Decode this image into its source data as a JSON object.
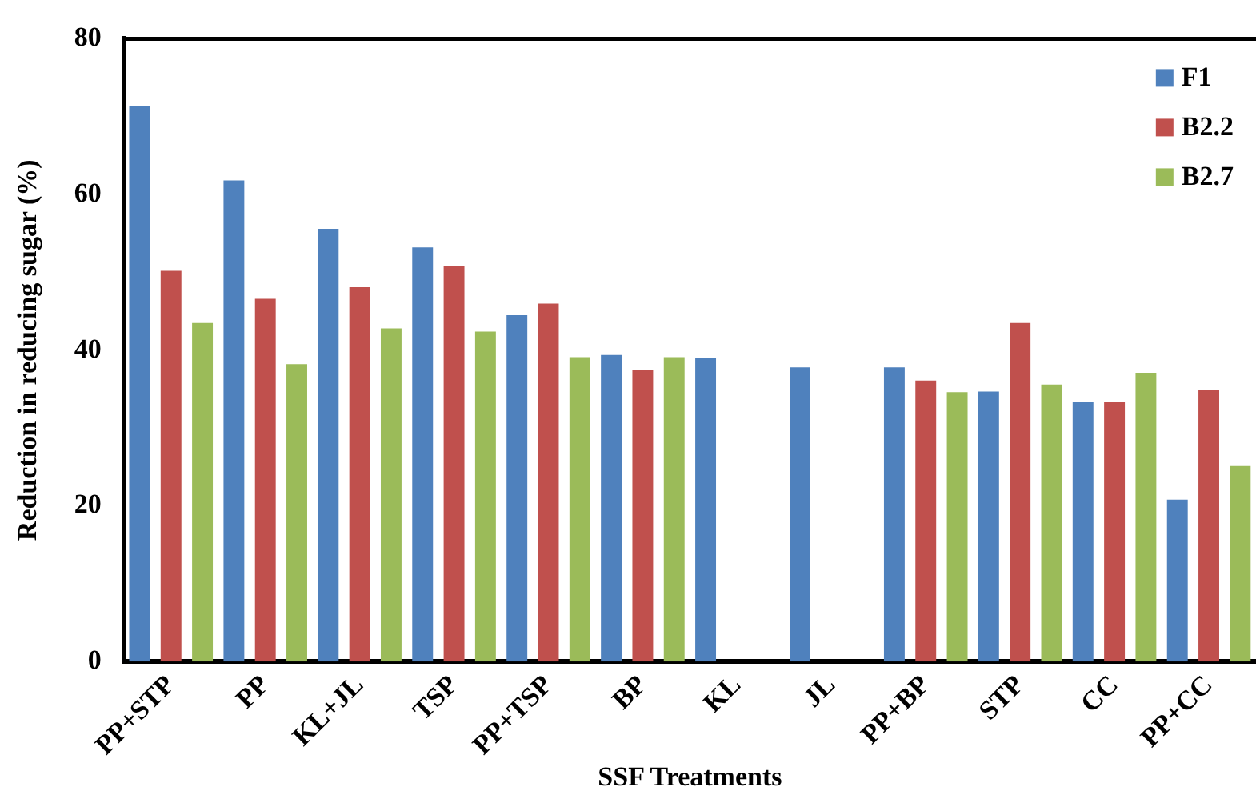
{
  "chart_data": {
    "type": "bar",
    "xlabel": "SSF Treatments",
    "ylabel": "Reduction in reducing sugar (%)",
    "categories": [
      "PP+STP",
      "PP",
      "KL+JL",
      "TSP",
      "PP+TSP",
      "BP",
      "KL",
      "JL",
      "PP+BP",
      "STP",
      "CC",
      "PP+CC"
    ],
    "series": [
      {
        "name": "F1",
        "color": "#4f81bd",
        "values": [
          71.3,
          61.8,
          55.6,
          53.2,
          44.5,
          39.4,
          39.0,
          37.8,
          37.8,
          34.7,
          33.3,
          20.8
        ]
      },
      {
        "name": "B2.2",
        "color": "#c0504d",
        "values": [
          50.2,
          46.6,
          48.1,
          50.8,
          46.0,
          37.4,
          null,
          null,
          36.1,
          43.5,
          33.3,
          34.9
        ]
      },
      {
        "name": "B2.7",
        "color": "#9bbb59",
        "values": [
          43.5,
          38.2,
          42.8,
          42.4,
          39.1,
          39.1,
          null,
          null,
          34.6,
          35.6,
          37.1,
          25.1
        ]
      }
    ],
    "ylim": [
      0,
      80
    ],
    "yticks": [
      0,
      20,
      40,
      60,
      80
    ],
    "grid": false,
    "legend": "top right"
  }
}
